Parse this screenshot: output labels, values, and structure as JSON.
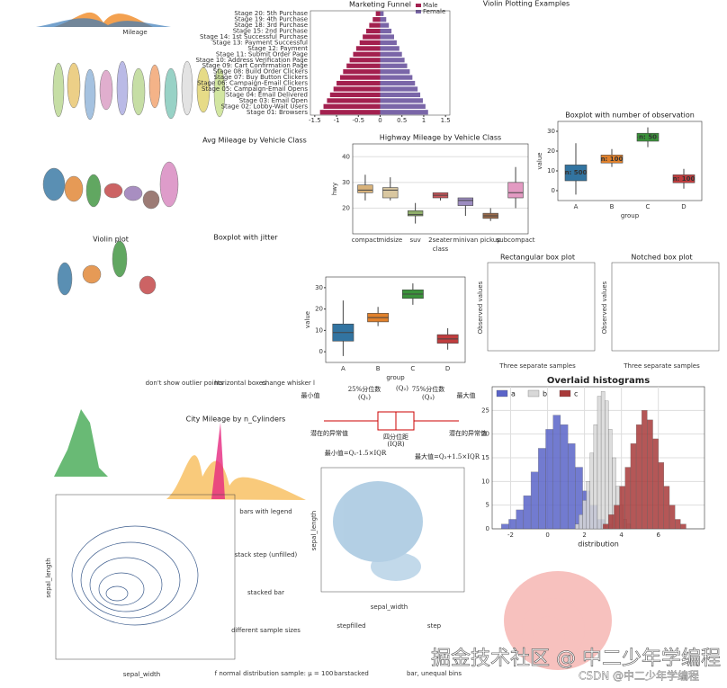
{
  "chart_data": [
    {
      "type": "funnel",
      "title": "Marketing Funnel",
      "categories": [
        "Stage 20: 5th Purchase",
        "Stage 19: 4th Purchase",
        "Stage 18: 3rd Purchase",
        "Stage 15: 2nd Purchase",
        "Stage 14: 1st Successful Purchase",
        "Stage 13: Payment Successful",
        "Stage 12: Payment",
        "Stage 11: Submit Order Page",
        "Stage 10: Address Verification Page",
        "Stage 09: Cart Confirmation Page",
        "Stage 08: Build Order Clickers",
        "Stage 07: Buy Button Clickers",
        "Stage 06: Campaign-Email Clickers",
        "Stage 05: Campaign-Email Opens",
        "Stage 04: Email Delivered",
        "Stage 03: Email Open",
        "Stage 02: Lobby-Wait Users",
        "Stage 01: Browsers"
      ],
      "series": [
        {
          "name": "Male",
          "color": "#a3204f",
          "values": [
            -0.1,
            -0.17,
            -0.25,
            -0.32,
            -0.4,
            -0.47,
            -0.55,
            -0.62,
            -0.7,
            -0.77,
            -0.85,
            -0.92,
            -1.0,
            -1.07,
            -1.15,
            -1.22,
            -1.3,
            -1.38
          ]
        },
        {
          "name": "Female",
          "color": "#7a66a8",
          "values": [
            0.08,
            0.14,
            0.2,
            0.26,
            0.32,
            0.38,
            0.44,
            0.5,
            0.56,
            0.62,
            0.68,
            0.74,
            0.8,
            0.86,
            0.92,
            0.98,
            1.04,
            1.1
          ]
        }
      ],
      "xlim": [
        -1.6,
        1.6
      ],
      "xticks": [
        -1.5,
        -1,
        -0.5,
        0,
        0.5,
        1,
        1.5
      ],
      "legend": "upper right"
    },
    {
      "type": "box",
      "title": "Highway Mileage by Vehicle Class",
      "xlabel": "class",
      "ylabel": "hwy",
      "categories": [
        "compact",
        "midsize",
        "suv",
        "2seater",
        "minivan",
        "pickup",
        "subcompact"
      ],
      "colors": [
        "#d8b27a",
        "#d9c7a0",
        "#8fae6b",
        "#c8565a",
        "#9c8cc0",
        "#9a6a4a",
        "#e39ac2"
      ],
      "boxes": [
        {
          "low": 23,
          "q1": 26,
          "median": 27,
          "q3": 29,
          "high": 33
        },
        {
          "low": 23,
          "q1": 24,
          "median": 27,
          "q3": 28,
          "high": 32
        },
        {
          "low": 14,
          "q1": 17,
          "median": 17.5,
          "q3": 19,
          "high": 22
        },
        {
          "low": 23,
          "q1": 24,
          "median": 25,
          "q3": 26,
          "high": 26
        },
        {
          "low": 17,
          "q1": 21,
          "median": 23,
          "q3": 24,
          "high": 24
        },
        {
          "low": 15,
          "q1": 16,
          "median": 17,
          "q3": 18,
          "high": 20
        },
        {
          "low": 20,
          "q1": 24,
          "median": 26,
          "q3": 30,
          "high": 36
        }
      ],
      "ylim": [
        10,
        45
      ],
      "yticks": [
        20,
        30,
        40
      ],
      "grid": true
    },
    {
      "type": "box",
      "title": "Boxplot with number of observation",
      "xlabel": "group",
      "ylabel": "value",
      "categories": [
        "A",
        "B",
        "C",
        "D"
      ],
      "colors": [
        "#3274a1",
        "#e1812c",
        "#3a923a",
        "#c03d3e"
      ],
      "boxes": [
        {
          "low": -2,
          "q1": 5,
          "median": 9,
          "q3": 13,
          "high": 24
        },
        {
          "low": 12,
          "q1": 14,
          "median": 16,
          "q3": 18,
          "high": 21
        },
        {
          "low": 22,
          "q1": 25,
          "median": 27,
          "q3": 29,
          "high": 32
        },
        {
          "low": 1,
          "q1": 4,
          "median": 6,
          "q3": 8,
          "high": 11
        }
      ],
      "values": [
        9,
        16,
        27,
        6
      ],
      "value_labels": [
        "n: 500",
        "n: 100",
        "n: 50",
        "n: 100"
      ],
      "ylim": [
        -5,
        35
      ],
      "yticks": [
        0,
        10,
        20,
        30
      ],
      "grid": false
    },
    {
      "type": "box",
      "xlabel": "group",
      "ylabel": "value",
      "categories": [
        "A",
        "B",
        "C",
        "D"
      ],
      "colors": [
        "#3274a1",
        "#e1812c",
        "#3a923a",
        "#c03d3e"
      ],
      "boxes": [
        {
          "low": -2,
          "q1": 5,
          "median": 9,
          "q3": 13,
          "high": 24
        },
        {
          "low": 12,
          "q1": 14,
          "median": 16,
          "q3": 18,
          "high": 21
        },
        {
          "low": 22,
          "q1": 25,
          "median": 27,
          "q3": 29,
          "high": 32
        },
        {
          "low": 1,
          "q1": 4,
          "median": 6,
          "q3": 8,
          "high": 11
        }
      ],
      "ylim": [
        -5,
        35
      ],
      "yticks": [
        0,
        10,
        20,
        30
      ],
      "grid": false
    },
    {
      "type": "hist",
      "title": "Overlaid histograms",
      "xlabel": "distribution",
      "legend": "upper left",
      "grid": true,
      "series": [
        {
          "name": "a",
          "color": "#5a64c8",
          "bins": [
            -2.5,
            -2.1,
            -1.7,
            -1.3,
            -0.9,
            -0.5,
            -0.1,
            0.3,
            0.7,
            1.1,
            1.5,
            1.9,
            2.3,
            2.7,
            3.1,
            3.5
          ],
          "values": [
            1,
            2,
            4,
            7,
            12,
            17,
            21,
            24,
            22,
            18,
            13,
            8,
            5,
            2,
            1
          ]
        },
        {
          "name": "b",
          "color": "#d8d8d8",
          "bins": [
            1.5,
            1.7,
            1.9,
            2.1,
            2.3,
            2.5,
            2.7,
            2.9,
            3.1,
            3.3,
            3.5,
            3.7,
            3.9,
            4.1,
            4.3,
            4.5
          ],
          "values": [
            1,
            3,
            6,
            10,
            16,
            22,
            28,
            29,
            27,
            21,
            15,
            9,
            5,
            2,
            1
          ]
        },
        {
          "name": "c",
          "color": "#a83a3a",
          "bins": [
            3,
            3.3,
            3.6,
            3.9,
            4.2,
            4.5,
            4.8,
            5.1,
            5.4,
            5.7,
            6,
            6.3,
            6.6,
            6.9,
            7.2,
            7.5
          ],
          "values": [
            1,
            3,
            5,
            9,
            13,
            18,
            22,
            25,
            23,
            19,
            14,
            9,
            5,
            2,
            1
          ]
        }
      ],
      "xlim": [
        -3,
        8.5
      ],
      "xticks": [
        -2,
        0,
        2,
        4,
        6
      ],
      "ylim": [
        0,
        30
      ],
      "yticks": [
        0,
        5,
        10,
        15,
        20,
        25
      ]
    }
  ],
  "panels": [
    {
      "title": "Avg Mileage by Vehicle Class"
    },
    {
      "title": "Violin Plotting Examples"
    },
    {
      "title": "Violin plot"
    },
    {
      "title": "Boxplot with jitter"
    },
    {
      "title": "Rectangular box plot",
      "xlabel": "Three separate samples",
      "ylabel": "Observed values"
    },
    {
      "title": "Notched box plot",
      "xlabel": "Three separate samples",
      "ylabel": "Observed values"
    },
    {
      "title": "don't show outlier points"
    },
    {
      "title": "horizontal boxes"
    },
    {
      "title": "change whisker l"
    },
    {
      "title": "City Mileage by n_Cylinders"
    },
    {
      "title": "bars with legend"
    },
    {
      "title": "stack step (unfilled)"
    },
    {
      "title": "stacked bar"
    },
    {
      "title": "different sample sizes"
    },
    {
      "title": "stepfilled"
    },
    {
      "title": "step"
    },
    {
      "title": "barstacked"
    },
    {
      "title": "bar, unequal bins"
    },
    {
      "title": "f normal distribution sample: μ = 100"
    },
    {
      "xlabel": "sepal_width",
      "ylabel": "sepal_length"
    },
    {
      "xlabel": "sepal_width",
      "ylabel": "sepal_length"
    },
    {
      "xlabel": "Mileage"
    }
  ],
  "diagram": {
    "min": "最小值",
    "q1": "25%分位数",
    "q1sym": "(Q₁)",
    "q2sym": "(Q₂)",
    "q3": "75%分位数",
    "q3sym": "(Q₃)",
    "max": "最大值",
    "outlierL": "潜在的异常值",
    "outlierR": "潜在的异常值",
    "iqr": "四分位距",
    "iqrsym": "(IQR)",
    "minf": "最小值=Q₁-1.5×IQR",
    "maxf": "最大值=Q₃+1.5×IQR"
  },
  "watermark": {
    "main": "掘金技术社区 @ 中二少年学编程",
    "csdn": "CSDN @中二少年学编程"
  }
}
